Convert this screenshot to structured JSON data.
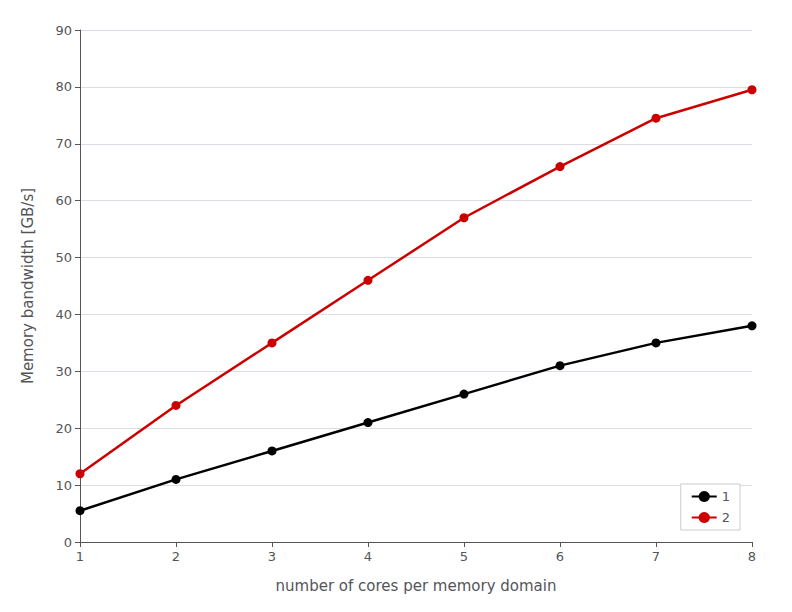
{
  "chart_data": {
    "type": "line",
    "x": [
      1,
      2,
      3,
      4,
      5,
      6,
      7,
      8
    ],
    "series": [
      {
        "name": "1",
        "color": "#000000",
        "values": [
          5.5,
          11.0,
          16.0,
          21.0,
          26.0,
          31.0,
          35.0,
          38.0
        ]
      },
      {
        "name": "2",
        "color": "#cc0000",
        "values": [
          12.0,
          24.0,
          35.0,
          46.0,
          57.0,
          66.0,
          74.5,
          79.5
        ]
      }
    ],
    "xlabel": "number of cores per memory domain",
    "ylabel": "Memory bandwidth [GB/s]",
    "xlim": [
      1,
      8
    ],
    "ylim": [
      0,
      90
    ],
    "xticks": [
      1,
      2,
      3,
      4,
      5,
      6,
      7,
      8
    ],
    "yticks": [
      0,
      10,
      20,
      30,
      40,
      50,
      60,
      70,
      80,
      90
    ],
    "grid": true,
    "legend": "lower right",
    "marker": "o"
  }
}
